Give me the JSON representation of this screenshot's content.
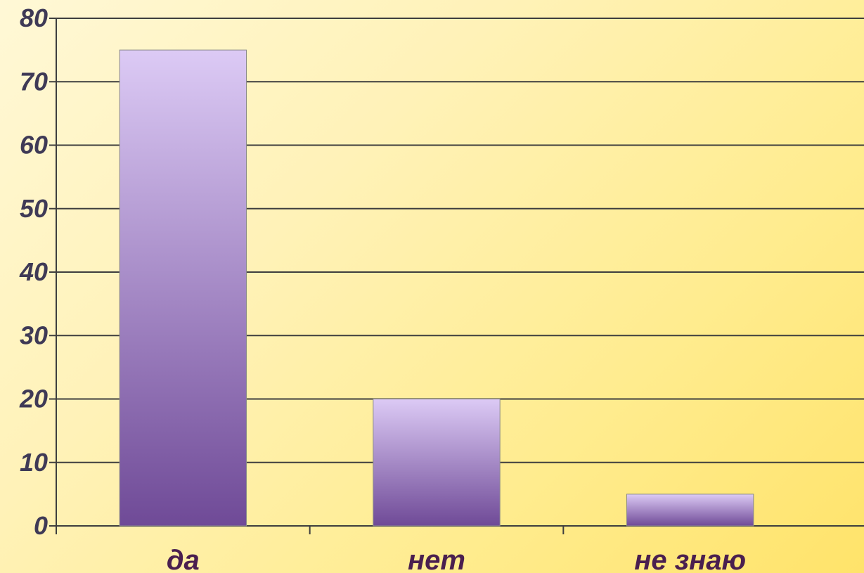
{
  "colors": {
    "bar_top": "#dccaf5",
    "bar_bottom": "#6f4a97",
    "grid": "#3e3e3e",
    "axis": "#3e3e3e",
    "tick_text": "#3f3a56",
    "category_text": "#4a1f4f"
  },
  "chart_data": {
    "type": "bar",
    "categories": [
      "да",
      "нет",
      "не знаю"
    ],
    "values": [
      75,
      20,
      5
    ],
    "ylim": [
      0,
      80
    ],
    "yticks": [
      0,
      10,
      20,
      30,
      40,
      50,
      60,
      70,
      80
    ],
    "grid": true,
    "legend": "none"
  }
}
